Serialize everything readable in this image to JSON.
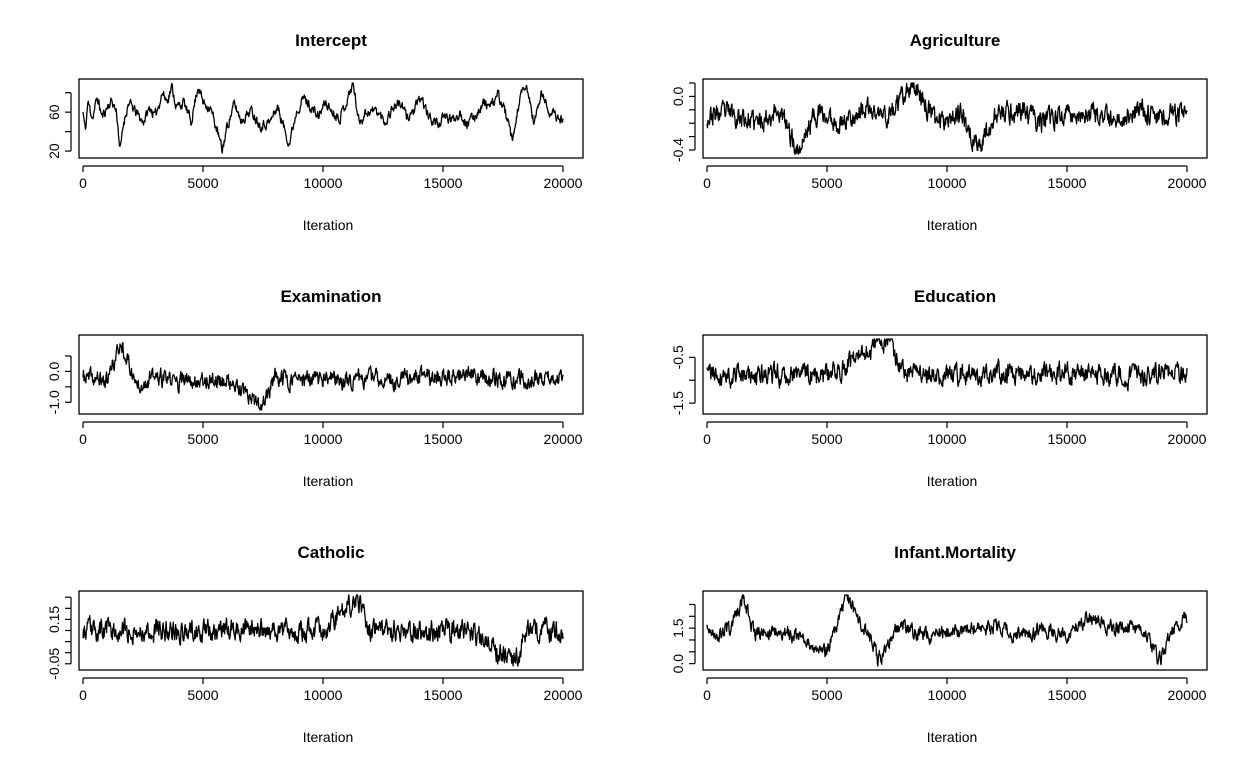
{
  "chart_data": [
    {
      "type": "line",
      "title": "Intercept",
      "xlabel": "Iteration",
      "ylabel": "",
      "xlim": [
        0,
        20000
      ],
      "ylim": [
        17,
        90
      ],
      "xticks": [
        0,
        5000,
        10000,
        15000,
        20000
      ],
      "xtick_labels": [
        "0",
        "5000",
        "10000",
        "15000",
        "20000"
      ],
      "yticks": [
        20,
        40,
        60,
        80
      ],
      "ytick_labels": [
        "20",
        "",
        "60",
        ""
      ],
      "series": [
        {
          "color": "#000000",
          "anchors": [
            [
              0,
              60
            ],
            [
              100,
              40
            ],
            [
              200,
              70
            ],
            [
              400,
              55
            ],
            [
              600,
              75
            ],
            [
              800,
              55
            ],
            [
              1000,
              65
            ],
            [
              1200,
              72
            ],
            [
              1400,
              60
            ],
            [
              1550,
              20
            ],
            [
              1700,
              50
            ],
            [
              1900,
              70
            ],
            [
              2200,
              60
            ],
            [
              2500,
              50
            ],
            [
              2800,
              65
            ],
            [
              3000,
              55
            ],
            [
              3300,
              80
            ],
            [
              3500,
              72
            ],
            [
              3700,
              86
            ],
            [
              3900,
              65
            ],
            [
              4200,
              70
            ],
            [
              4500,
              50
            ],
            [
              4800,
              88
            ],
            [
              5000,
              70
            ],
            [
              5300,
              65
            ],
            [
              5600,
              40
            ],
            [
              5800,
              20
            ],
            [
              6000,
              45
            ],
            [
              6300,
              68
            ],
            [
              6600,
              52
            ],
            [
              7000,
              62
            ],
            [
              7400,
              47
            ],
            [
              7800,
              50
            ],
            [
              8100,
              66
            ],
            [
              8400,
              42
            ],
            [
              8600,
              28
            ],
            [
              8900,
              62
            ],
            [
              9200,
              75
            ],
            [
              9500,
              65
            ],
            [
              9800,
              55
            ],
            [
              10100,
              70
            ],
            [
              10400,
              60
            ],
            [
              10700,
              55
            ],
            [
              11000,
              72
            ],
            [
              11250,
              90
            ],
            [
              11500,
              50
            ],
            [
              11800,
              60
            ],
            [
              12200,
              62
            ],
            [
              12600,
              50
            ],
            [
              12900,
              65
            ],
            [
              13200,
              70
            ],
            [
              13500,
              55
            ],
            [
              13800,
              62
            ],
            [
              14100,
              75
            ],
            [
              14400,
              55
            ],
            [
              14800,
              48
            ],
            [
              15100,
              55
            ],
            [
              15400,
              52
            ],
            [
              15700,
              60
            ],
            [
              16000,
              48
            ],
            [
              16300,
              55
            ],
            [
              16700,
              70
            ],
            [
              17000,
              65
            ],
            [
              17300,
              78
            ],
            [
              17600,
              60
            ],
            [
              17900,
              28
            ],
            [
              18200,
              75
            ],
            [
              18500,
              85
            ],
            [
              18800,
              48
            ],
            [
              19100,
              80
            ],
            [
              19400,
              62
            ],
            [
              19700,
              55
            ],
            [
              20000,
              52
            ]
          ],
          "amplitude": 6,
          "seed": 11
        }
      ]
    },
    {
      "type": "line",
      "title": "Agriculture",
      "xlabel": "Iteration",
      "ylabel": "",
      "xlim": [
        0,
        20000
      ],
      "ylim": [
        -0.43,
        0.1
      ],
      "xticks": [
        0,
        5000,
        10000,
        15000,
        20000
      ],
      "xtick_labels": [
        "0",
        "5000",
        "10000",
        "15000",
        "20000"
      ],
      "yticks": [
        -0.4,
        -0.3,
        -0.2,
        -0.1,
        0.0,
        0.1
      ],
      "ytick_labels": [
        "-0.4",
        "",
        "",
        "",
        "0.0",
        ""
      ],
      "series": [
        {
          "color": "#000000",
          "anchors": [
            [
              0,
              -0.15
            ],
            [
              1000,
              -0.12
            ],
            [
              2000,
              -0.2
            ],
            [
              3000,
              -0.1
            ],
            [
              3800,
              -0.42
            ],
            [
              4500,
              -0.12
            ],
            [
              5500,
              -0.2
            ],
            [
              6500,
              -0.1
            ],
            [
              7500,
              -0.15
            ],
            [
              8700,
              0.08
            ],
            [
              9500,
              -0.18
            ],
            [
              10500,
              -0.12
            ],
            [
              11300,
              -0.38
            ],
            [
              12000,
              -0.15
            ],
            [
              13000,
              -0.1
            ],
            [
              14000,
              -0.2
            ],
            [
              15000,
              -0.12
            ],
            [
              16000,
              -0.15
            ],
            [
              17000,
              -0.18
            ],
            [
              18000,
              -0.1
            ],
            [
              19000,
              -0.15
            ],
            [
              20000,
              -0.12
            ]
          ],
          "amplitude": 0.09,
          "seed": 23
        }
      ]
    },
    {
      "type": "line",
      "title": "Examination",
      "xlabel": "Iteration",
      "ylabel": "",
      "xlim": [
        0,
        20000
      ],
      "ylim": [
        -1.25,
        1.05
      ],
      "xticks": [
        0,
        5000,
        10000,
        15000,
        20000
      ],
      "xtick_labels": [
        "0",
        "5000",
        "10000",
        "15000",
        "20000"
      ],
      "yticks": [
        -1.0,
        -0.5,
        0.0,
        0.5
      ],
      "ytick_labels": [
        "-1.0",
        "",
        "0.0",
        ""
      ],
      "series": [
        {
          "color": "#000000",
          "anchors": [
            [
              0,
              -0.2
            ],
            [
              1000,
              -0.3
            ],
            [
              1600,
              0.95
            ],
            [
              2200,
              -0.4
            ],
            [
              3000,
              -0.2
            ],
            [
              4000,
              -0.35
            ],
            [
              5000,
              -0.25
            ],
            [
              6000,
              -0.3
            ],
            [
              7400,
              -1.2
            ],
            [
              8000,
              -0.2
            ],
            [
              9000,
              -0.3
            ],
            [
              10000,
              -0.25
            ],
            [
              11000,
              -0.3
            ],
            [
              12000,
              -0.2
            ],
            [
              13000,
              -0.3
            ],
            [
              14000,
              -0.15
            ],
            [
              15000,
              -0.2
            ],
            [
              16000,
              -0.1
            ],
            [
              17000,
              -0.2
            ],
            [
              18000,
              -0.3
            ],
            [
              19000,
              -0.25
            ],
            [
              20000,
              -0.2
            ]
          ],
          "amplitude": 0.32,
          "seed": 37
        }
      ]
    },
    {
      "type": "line",
      "title": "Education",
      "xlabel": "Iteration",
      "ylabel": "",
      "xlim": [
        0,
        20000
      ],
      "ylim": [
        -1.65,
        -0.1
      ],
      "xticks": [
        0,
        5000,
        10000,
        15000,
        20000
      ],
      "xtick_labels": [
        "0",
        "5000",
        "10000",
        "15000",
        "20000"
      ],
      "yticks": [
        -1.5,
        -1.0,
        -0.5
      ],
      "ytick_labels": [
        "-1.5",
        "",
        "-0.5"
      ],
      "series": [
        {
          "color": "#000000",
          "anchors": [
            [
              0,
              -0.85
            ],
            [
              2000,
              -0.9
            ],
            [
              4000,
              -0.85
            ],
            [
              5000,
              -0.9
            ],
            [
              7500,
              -0.1
            ],
            [
              8200,
              -0.85
            ],
            [
              10000,
              -0.9
            ],
            [
              12000,
              -0.85
            ],
            [
              14000,
              -0.9
            ],
            [
              16000,
              -0.85
            ],
            [
              18000,
              -0.9
            ],
            [
              20000,
              -0.85
            ]
          ],
          "amplitude": 0.26,
          "seed": 41
        }
      ]
    },
    {
      "type": "line",
      "title": "Catholic",
      "xlabel": "Iteration",
      "ylabel": "",
      "xlim": [
        0,
        20000
      ],
      "ylim": [
        -0.06,
        0.26
      ],
      "xticks": [
        0,
        5000,
        10000,
        15000,
        20000
      ],
      "xtick_labels": [
        "0",
        "5000",
        "10000",
        "15000",
        "20000"
      ],
      "yticks": [
        -0.05,
        0.0,
        0.05,
        0.1,
        0.15,
        0.2,
        0.25
      ],
      "ytick_labels": [
        "-0.05",
        "",
        "",
        "",
        "0.15",
        "",
        ""
      ],
      "series": [
        {
          "color": "#000000",
          "anchors": [
            [
              0,
              0.1
            ],
            [
              2000,
              0.1
            ],
            [
              4000,
              0.1
            ],
            [
              6000,
              0.1
            ],
            [
              8000,
              0.1
            ],
            [
              10000,
              0.1
            ],
            [
              11400,
              0.25
            ],
            [
              12000,
              0.1
            ],
            [
              14000,
              0.1
            ],
            [
              16000,
              0.1
            ],
            [
              18000,
              -0.05
            ],
            [
              18500,
              0.1
            ],
            [
              20000,
              0.1
            ]
          ],
          "amplitude": 0.055,
          "seed": 53
        }
      ]
    },
    {
      "type": "line",
      "title": "Infant.Mortality",
      "xlabel": "Iteration",
      "ylabel": "",
      "xlim": [
        0,
        20000
      ],
      "ylim": [
        -0.1,
        2.9
      ],
      "xticks": [
        0,
        5000,
        10000,
        15000,
        20000
      ],
      "xtick_labels": [
        "0",
        "5000",
        "10000",
        "15000",
        "20000"
      ],
      "yticks": [
        0.0,
        0.5,
        1.0,
        1.5,
        2.0,
        2.5
      ],
      "ytick_labels": [
        "0.0",
        "",
        "",
        "1.5",
        "",
        ""
      ],
      "series": [
        {
          "color": "#000000",
          "anchors": [
            [
              0,
              1.4
            ],
            [
              500,
              1.2
            ],
            [
              1000,
              1.5
            ],
            [
              1500,
              2.8
            ],
            [
              2000,
              1.3
            ],
            [
              3000,
              1.4
            ],
            [
              4000,
              1.0
            ],
            [
              5000,
              0.5
            ],
            [
              5800,
              2.8
            ],
            [
              6500,
              1.4
            ],
            [
              7000,
              0.8
            ],
            [
              7100,
              0.1
            ],
            [
              8000,
              1.6
            ],
            [
              9000,
              1.2
            ],
            [
              10000,
              1.3
            ],
            [
              11000,
              1.5
            ],
            [
              12000,
              1.6
            ],
            [
              13000,
              1.2
            ],
            [
              14000,
              1.4
            ],
            [
              15000,
              1.3
            ],
            [
              16000,
              1.9
            ],
            [
              17000,
              1.5
            ],
            [
              18000,
              1.6
            ],
            [
              18900,
              0.1
            ],
            [
              19400,
              1.4
            ],
            [
              20000,
              2.0
            ]
          ],
          "amplitude": 0.35,
          "seed": 67
        }
      ]
    }
  ]
}
